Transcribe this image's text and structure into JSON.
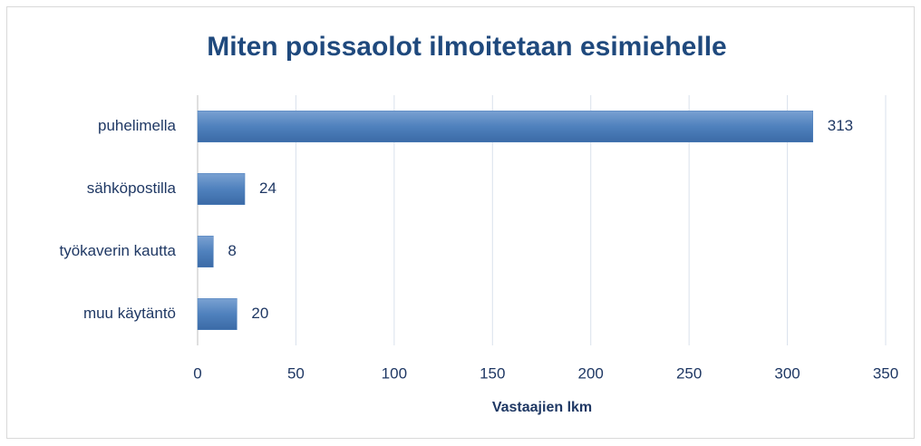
{
  "chart_data": {
    "type": "bar",
    "orientation": "horizontal",
    "title": "Miten poissaolot ilmoitetaan esimiehelle",
    "xlabel": "Vastaajien lkm",
    "categories": [
      "puhelimella",
      "sähköpostilla",
      "työkaverin kautta",
      "muu käytäntö"
    ],
    "values": [
      313,
      24,
      8,
      20
    ],
    "color": "#4f81bd",
    "xlim": [
      0,
      350
    ],
    "xticks": [
      0,
      50,
      100,
      150,
      200,
      250,
      300,
      350
    ],
    "grid": true
  }
}
